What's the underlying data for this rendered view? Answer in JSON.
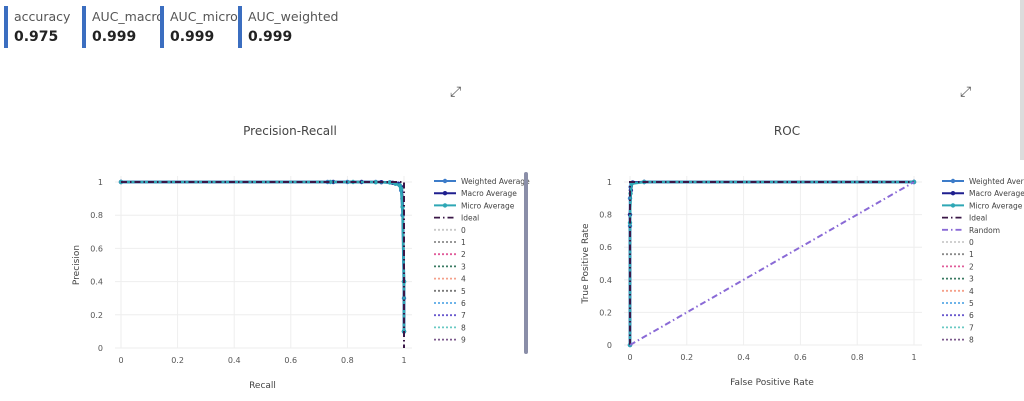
{
  "metrics": [
    {
      "name": "accuracy",
      "value": "0.975"
    },
    {
      "name": "AUC_macro",
      "value": "0.999"
    },
    {
      "name": "AUC_micro",
      "value": "0.999"
    },
    {
      "name": "AUC_weighted",
      "value": "0.999"
    }
  ],
  "icons": {
    "expand": "expand-arrows-icon"
  },
  "chart_data": [
    {
      "type": "line",
      "title": "Precision-Recall",
      "xlabel": "Recall",
      "ylabel": "Precision",
      "xlim": [
        0,
        1
      ],
      "ylim": [
        0,
        1
      ],
      "x_ticks": [
        "0",
        "0.2",
        "0.4",
        "0.6",
        "0.8",
        "1"
      ],
      "y_ticks": [
        "0",
        "0.2",
        "0.4",
        "0.6",
        "0.8",
        "1"
      ],
      "grid": true,
      "legend_position": "right",
      "series": [
        {
          "name": "Weighted Average",
          "color": "#3d7cc9",
          "style": "solid-markers",
          "x": [
            0,
            0.73,
            0.8,
            0.9,
            0.95,
            0.97,
            0.985,
            0.99,
            0.995,
            1.0,
            1.0
          ],
          "y": [
            1,
            1,
            1,
            1,
            0.998,
            0.99,
            0.98,
            0.95,
            0.8,
            0.3,
            0.1
          ]
        },
        {
          "name": "Macro Average",
          "color": "#1f1f8f",
          "style": "solid-markers",
          "x": [
            0,
            0.75,
            0.85,
            0.92,
            0.96,
            0.98,
            0.99,
            0.995,
            1.0,
            1.0
          ],
          "y": [
            1,
            1,
            1,
            0.999,
            0.995,
            0.99,
            0.97,
            0.9,
            0.4,
            0.1
          ]
        },
        {
          "name": "Micro Average",
          "color": "#2ea7b5",
          "style": "solid-markers",
          "x": [
            0,
            0.74,
            0.82,
            0.9,
            0.95,
            0.97,
            0.985,
            0.99,
            0.995,
            1.0,
            1.0
          ],
          "y": [
            1,
            1,
            1,
            0.999,
            0.997,
            0.99,
            0.98,
            0.96,
            0.85,
            0.4,
            0.1
          ]
        },
        {
          "name": "Ideal",
          "color": "#3a1747",
          "style": "dashdot",
          "x": [
            0,
            1,
            1
          ],
          "y": [
            1,
            1,
            0
          ]
        },
        {
          "name": "0",
          "color": "#c9c9c9",
          "style": "dotted"
        },
        {
          "name": "1",
          "color": "#8a8a8a",
          "style": "dotted"
        },
        {
          "name": "2",
          "color": "#e05c9a",
          "style": "dotted"
        },
        {
          "name": "3",
          "color": "#3a7a62",
          "style": "dotted"
        },
        {
          "name": "4",
          "color": "#f5a08a",
          "style": "dotted"
        },
        {
          "name": "5",
          "color": "#7a7a7a",
          "style": "dotted"
        },
        {
          "name": "6",
          "color": "#5aa9e6",
          "style": "dotted"
        },
        {
          "name": "7",
          "color": "#6a5acd",
          "style": "dotted"
        },
        {
          "name": "8",
          "color": "#69c9c3",
          "style": "dotted"
        },
        {
          "name": "9",
          "color": "#7c5a8c",
          "style": "dotted"
        }
      ]
    },
    {
      "type": "line",
      "title": "ROC",
      "xlabel": "False Positive Rate",
      "ylabel": "True Positive Rate",
      "xlim": [
        0,
        1
      ],
      "ylim": [
        0,
        1
      ],
      "x_ticks": [
        "0",
        "0.2",
        "0.4",
        "0.6",
        "0.8",
        "1"
      ],
      "y_ticks": [
        "0",
        "0.2",
        "0.4",
        "0.6",
        "0.8",
        "1"
      ],
      "grid": true,
      "legend_position": "right",
      "series": [
        {
          "name": "Weighted Average",
          "color": "#3d7cc9",
          "style": "solid-markers",
          "x": [
            0,
            0,
            0,
            0.002,
            0.005,
            0.01,
            0.05,
            1
          ],
          "y": [
            0,
            0.73,
            0.9,
            0.97,
            0.99,
            0.997,
            1,
            1
          ]
        },
        {
          "name": "Macro Average",
          "color": "#1f1f8f",
          "style": "solid-markers",
          "x": [
            0,
            0,
            0.003,
            0.008,
            0.05,
            1
          ],
          "y": [
            0,
            0.8,
            0.95,
            0.995,
            1,
            1
          ]
        },
        {
          "name": "Micro Average",
          "color": "#2ea7b5",
          "style": "solid-markers",
          "x": [
            0,
            0,
            0.002,
            0.006,
            0.05,
            1
          ],
          "y": [
            0,
            0.75,
            0.93,
            0.99,
            1,
            1
          ]
        },
        {
          "name": "Ideal",
          "color": "#3a1747",
          "style": "dashdot",
          "x": [
            0,
            0,
            1
          ],
          "y": [
            0,
            1,
            1
          ]
        },
        {
          "name": "Random",
          "color": "#8a6ad6",
          "style": "dashdot",
          "x": [
            0,
            1
          ],
          "y": [
            0,
            1
          ]
        },
        {
          "name": "0",
          "color": "#c9c9c9",
          "style": "dotted"
        },
        {
          "name": "1",
          "color": "#8a8a8a",
          "style": "dotted"
        },
        {
          "name": "2",
          "color": "#e05c9a",
          "style": "dotted"
        },
        {
          "name": "3",
          "color": "#3a7a62",
          "style": "dotted"
        },
        {
          "name": "4",
          "color": "#f5a08a",
          "style": "dotted"
        },
        {
          "name": "5",
          "color": "#5aa9e6",
          "style": "dotted"
        },
        {
          "name": "6",
          "color": "#6a5acd",
          "style": "dotted"
        },
        {
          "name": "7",
          "color": "#69c9c3",
          "style": "dotted"
        },
        {
          "name": "8",
          "color": "#7c5a8c",
          "style": "dotted"
        }
      ]
    }
  ]
}
